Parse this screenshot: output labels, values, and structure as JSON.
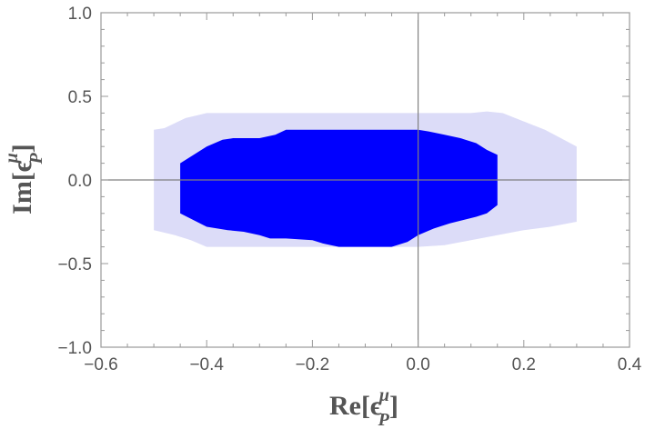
{
  "chart_data": {
    "type": "area",
    "xlabel": {
      "pre": "Re[",
      "sym": "ϵ",
      "sub": "P",
      "sup": "μ",
      "post": "]"
    },
    "ylabel": {
      "pre": "Im[",
      "sym": "ϵ",
      "sub": "P",
      "sup": "μ",
      "post": "]"
    },
    "xlim": [
      -0.6,
      0.4
    ],
    "ylim": [
      -1.0,
      1.0
    ],
    "xticks": [
      -0.6,
      -0.4,
      -0.2,
      0.0,
      0.2,
      0.4
    ],
    "xtick_labels": [
      "−0.6",
      "−0.4",
      "−0.2",
      "0.0",
      "0.2",
      "0.4"
    ],
    "yticks": [
      -1.0,
      -0.5,
      0.0,
      0.5,
      1.0
    ],
    "ytick_labels": [
      "−1.0",
      "−0.5",
      "0.0",
      "0.5",
      "1.0"
    ],
    "grid": false,
    "axis_lines": [
      {
        "orientation": "vertical",
        "value": 0.0
      },
      {
        "orientation": "horizontal",
        "value": 0.0
      }
    ],
    "series": [
      {
        "fill": "#dcdcf8",
        "points": [
          [
            -0.5,
            0.3
          ],
          [
            -0.48,
            0.31
          ],
          [
            -0.44,
            0.37
          ],
          [
            -0.4,
            0.4
          ],
          [
            -0.35,
            0.4
          ],
          [
            -0.3,
            0.4
          ],
          [
            -0.2,
            0.4
          ],
          [
            -0.1,
            0.4
          ],
          [
            0.0,
            0.4
          ],
          [
            0.05,
            0.4
          ],
          [
            0.1,
            0.4
          ],
          [
            0.13,
            0.41
          ],
          [
            0.16,
            0.4
          ],
          [
            0.2,
            0.35
          ],
          [
            0.24,
            0.3
          ],
          [
            0.27,
            0.25
          ],
          [
            0.3,
            0.2
          ],
          [
            0.3,
            -0.25
          ],
          [
            0.25,
            -0.28
          ],
          [
            0.2,
            -0.3
          ],
          [
            0.15,
            -0.33
          ],
          [
            0.1,
            -0.36
          ],
          [
            0.05,
            -0.39
          ],
          [
            0.0,
            -0.4
          ],
          [
            -0.1,
            -0.4
          ],
          [
            -0.2,
            -0.4
          ],
          [
            -0.3,
            -0.4
          ],
          [
            -0.4,
            -0.4
          ],
          [
            -0.43,
            -0.36
          ],
          [
            -0.46,
            -0.33
          ],
          [
            -0.5,
            -0.3
          ]
        ]
      },
      {
        "fill": "#0000ff",
        "points": [
          [
            -0.45,
            0.1
          ],
          [
            -0.43,
            0.14
          ],
          [
            -0.4,
            0.2
          ],
          [
            -0.37,
            0.24
          ],
          [
            -0.35,
            0.25
          ],
          [
            -0.3,
            0.25
          ],
          [
            -0.27,
            0.27
          ],
          [
            -0.25,
            0.3
          ],
          [
            -0.2,
            0.3
          ],
          [
            -0.1,
            0.3
          ],
          [
            -0.05,
            0.3
          ],
          [
            0.0,
            0.3
          ],
          [
            0.02,
            0.29
          ],
          [
            0.05,
            0.27
          ],
          [
            0.08,
            0.25
          ],
          [
            0.11,
            0.22
          ],
          [
            0.13,
            0.18
          ],
          [
            0.15,
            0.15
          ],
          [
            0.15,
            -0.15
          ],
          [
            0.13,
            -0.2
          ],
          [
            0.11,
            -0.22
          ],
          [
            0.06,
            -0.26
          ],
          [
            0.03,
            -0.29
          ],
          [
            0.0,
            -0.33
          ],
          [
            -0.02,
            -0.37
          ],
          [
            -0.05,
            -0.4
          ],
          [
            -0.1,
            -0.4
          ],
          [
            -0.15,
            -0.4
          ],
          [
            -0.18,
            -0.38
          ],
          [
            -0.2,
            -0.36
          ],
          [
            -0.25,
            -0.35
          ],
          [
            -0.28,
            -0.35
          ],
          [
            -0.3,
            -0.33
          ],
          [
            -0.33,
            -0.31
          ],
          [
            -0.36,
            -0.3
          ],
          [
            -0.4,
            -0.28
          ],
          [
            -0.45,
            -0.2
          ]
        ]
      }
    ],
    "frame_color": "#999999",
    "zero_line_color": "#808080"
  }
}
